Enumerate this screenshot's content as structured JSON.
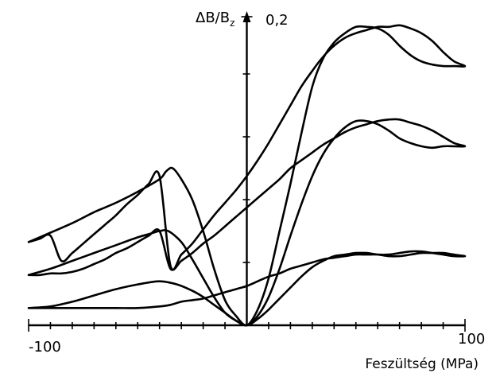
{
  "chart_data": {
    "type": "line",
    "title": "",
    "xlabel": "Feszültség (MPa)",
    "ylabel": "ΔB/Bz",
    "ylabel_main": "ΔB/B",
    "ylabel_sub": "z",
    "x_tick_labels": [
      "-100",
      "100"
    ],
    "y_tick_label": "0,2",
    "xlim": [
      -100,
      100
    ],
    "ylim": [
      0,
      0.2
    ],
    "x_minor_ticks": [
      -90,
      -80,
      -70,
      -60,
      -50,
      -40,
      -30,
      -20,
      -10,
      10,
      20,
      30,
      40,
      50,
      60,
      70,
      80,
      90
    ],
    "y_minor_ticks": [
      0.04,
      0.08,
      0.12,
      0.16
    ],
    "grid": false,
    "series": [
      {
        "x": [
          -100,
          -90,
          -80,
          -70,
          -60,
          -50,
          -40,
          -37,
          -34,
          -30,
          -25,
          -20,
          -15,
          -10,
          -5,
          0,
          5,
          10,
          15,
          20,
          25,
          30,
          35,
          40,
          45,
          50,
          55,
          60,
          65,
          70,
          75,
          80,
          85,
          90,
          95,
          100,
          95,
          90,
          85,
          80,
          75,
          70,
          65,
          60,
          55,
          50,
          45,
          40,
          35,
          30,
          25,
          20,
          15,
          10,
          5,
          0,
          -5,
          -10,
          -15,
          -20,
          -25,
          -30,
          -35,
          -40,
          -45,
          -50,
          -55,
          -60,
          -65,
          -70,
          -75,
          -80,
          -85,
          -90,
          -95,
          -100
        ],
        "y": [
          0.053,
          0.059,
          0.065,
          0.072,
          0.078,
          0.085,
          0.093,
          0.098,
          0.1,
          0.093,
          0.08,
          0.06,
          0.036,
          0.016,
          0.006,
          0.0,
          0.01,
          0.03,
          0.06,
          0.09,
          0.122,
          0.152,
          0.17,
          0.18,
          0.186,
          0.19,
          0.19,
          0.189,
          0.185,
          0.178,
          0.172,
          0.168,
          0.166,
          0.165,
          0.165,
          0.165,
          0.168,
          0.174,
          0.181,
          0.186,
          0.189,
          0.191,
          0.19,
          0.19,
          0.188,
          0.186,
          0.183,
          0.178,
          0.171,
          0.162,
          0.152,
          0.14,
          0.128,
          0.116,
          0.105,
          0.095,
          0.086,
          0.078,
          0.07,
          0.061,
          0.052,
          0.045,
          0.038,
          0.095,
          0.09,
          0.083,
          0.077,
          0.07,
          0.064,
          0.058,
          0.052,
          0.046,
          0.041,
          0.057,
          0.055,
          0.053
        ]
      },
      {
        "x": [
          -100,
          -90,
          -80,
          -70,
          -60,
          -50,
          -45,
          -40,
          -36,
          -30,
          -25,
          -20,
          -15,
          -10,
          -5,
          0,
          5,
          10,
          15,
          20,
          25,
          30,
          35,
          40,
          45,
          50,
          55,
          60,
          65,
          70,
          75,
          80,
          85,
          90,
          95,
          100,
          95,
          90,
          85,
          80,
          75,
          70,
          65,
          60,
          55,
          50,
          45,
          40,
          35,
          30,
          25,
          20,
          15,
          10,
          5,
          0,
          -5,
          -10,
          -15,
          -20,
          -25,
          -30,
          -35,
          -40,
          -45,
          -50,
          -55,
          -60,
          -65,
          -70,
          -75,
          -80,
          -85,
          -90,
          -95,
          -100
        ],
        "y": [
          0.032,
          0.036,
          0.041,
          0.046,
          0.051,
          0.056,
          0.058,
          0.06,
          0.06,
          0.053,
          0.042,
          0.03,
          0.018,
          0.008,
          0.003,
          0.0,
          0.006,
          0.018,
          0.036,
          0.057,
          0.077,
          0.095,
          0.109,
          0.119,
          0.126,
          0.13,
          0.13,
          0.128,
          0.124,
          0.119,
          0.116,
          0.114,
          0.113,
          0.114,
          0.114,
          0.114,
          0.116,
          0.12,
          0.124,
          0.127,
          0.129,
          0.131,
          0.131,
          0.13,
          0.128,
          0.126,
          0.123,
          0.119,
          0.115,
          0.11,
          0.105,
          0.1,
          0.093,
          0.087,
          0.081,
          0.075,
          0.069,
          0.063,
          0.057,
          0.052,
          0.046,
          0.041,
          0.036,
          0.06,
          0.057,
          0.053,
          0.049,
          0.046,
          0.042,
          0.039,
          0.036,
          0.034,
          0.033,
          0.033,
          0.032,
          0.032
        ]
      },
      {
        "x": [
          -100,
          -90,
          -80,
          -70,
          -60,
          -50,
          -40,
          -32,
          -25,
          -20,
          -15,
          -10,
          -5,
          0,
          5,
          10,
          15,
          20,
          25,
          30,
          35,
          40,
          45,
          50,
          55,
          60,
          65,
          70,
          75,
          80,
          85,
          90,
          95,
          100,
          95,
          90,
          85,
          80,
          75,
          70,
          65,
          60,
          55,
          50,
          45,
          40,
          35,
          30,
          25,
          20,
          15,
          10,
          5,
          0,
          -5,
          -10,
          -15,
          -20,
          -25,
          -30,
          -35,
          -40,
          -50,
          -60,
          -70,
          -80,
          -90,
          -100
        ],
        "y": [
          0.011,
          0.012,
          0.015,
          0.019,
          0.023,
          0.026,
          0.028,
          0.026,
          0.022,
          0.018,
          0.013,
          0.008,
          0.003,
          0.0,
          0.004,
          0.01,
          0.017,
          0.024,
          0.031,
          0.037,
          0.041,
          0.044,
          0.045,
          0.046,
          0.046,
          0.045,
          0.045,
          0.046,
          0.047,
          0.047,
          0.046,
          0.045,
          0.044,
          0.044,
          0.045,
          0.046,
          0.046,
          0.046,
          0.045,
          0.044,
          0.044,
          0.045,
          0.045,
          0.045,
          0.044,
          0.043,
          0.042,
          0.04,
          0.038,
          0.036,
          0.033,
          0.031,
          0.028,
          0.025,
          0.023,
          0.021,
          0.019,
          0.017,
          0.016,
          0.015,
          0.013,
          0.012,
          0.011,
          0.011,
          0.011,
          0.011,
          0.011,
          0.011
        ]
      }
    ]
  }
}
